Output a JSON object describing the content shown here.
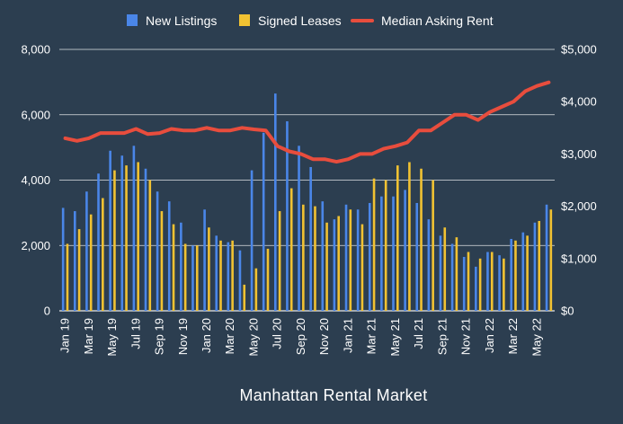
{
  "chart_data": {
    "type": "bar",
    "title": "Manhattan Rental Market",
    "background_color": "#2c3e50",
    "grid": true,
    "legend_position": "top",
    "y_left": {
      "ylim": [
        0,
        8000
      ],
      "ticks": [
        0,
        2000,
        4000,
        6000,
        8000
      ],
      "tick_labels": [
        "0",
        "2,000",
        "4,000",
        "6,000",
        "8,000"
      ]
    },
    "y_right": {
      "ylim": [
        0,
        5000
      ],
      "ticks": [
        0,
        1000,
        2000,
        3000,
        4000,
        5000
      ],
      "tick_labels": [
        "$0",
        "$1,000",
        "$2,000",
        "$3,000",
        "$4,000",
        "$5,000"
      ]
    },
    "x_tick_labels": [
      "Jan 19",
      "Mar 19",
      "May 19",
      "Jul 19",
      "Sep 19",
      "Nov 19",
      "Jan 20",
      "Mar 20",
      "May 20",
      "Jul 20",
      "Sep 20",
      "Nov 20",
      "Jan 21",
      "Mar 21",
      "May 21",
      "Jul 21",
      "Sep 21",
      "Nov 21",
      "Jan 22",
      "Mar 22",
      "May 22"
    ],
    "categories": [
      "Jan 19",
      "Feb 19",
      "Mar 19",
      "Apr 19",
      "May 19",
      "Jun 19",
      "Jul 19",
      "Aug 19",
      "Sep 19",
      "Oct 19",
      "Nov 19",
      "Dec 19",
      "Jan 20",
      "Feb 20",
      "Mar 20",
      "Apr 20",
      "May 20",
      "Jun 20",
      "Jul 20",
      "Aug 20",
      "Sep 20",
      "Oct 20",
      "Nov 20",
      "Dec 20",
      "Jan 21",
      "Feb 21",
      "Mar 21",
      "Apr 21",
      "May 21",
      "Jun 21",
      "Jul 21",
      "Aug 21",
      "Sep 21",
      "Oct 21",
      "Nov 21",
      "Dec 21",
      "Jan 22",
      "Feb 22",
      "Mar 22",
      "Apr 22",
      "May 22",
      "Jun 22"
    ],
    "series": [
      {
        "name": "New Listings",
        "type": "bar",
        "axis": "left",
        "color": "#4a86e8",
        "values": [
          3150,
          3050,
          3650,
          4200,
          4900,
          4750,
          5050,
          4350,
          3650,
          3350,
          2700,
          2000,
          3100,
          2300,
          2100,
          1850,
          4300,
          5450,
          6650,
          5800,
          5050,
          4400,
          3350,
          2800,
          3250,
          3100,
          3300,
          3500,
          3500,
          3700,
          3300,
          2800,
          2300,
          2050,
          1650,
          1350,
          1800,
          1700,
          2200,
          2400,
          2700,
          3250
        ]
      },
      {
        "name": "Signed Leases",
        "type": "bar",
        "axis": "left",
        "color": "#f1c232",
        "values": [
          2050,
          2500,
          2950,
          3450,
          4300,
          4450,
          4550,
          4000,
          3050,
          2650,
          2050,
          2000,
          2550,
          2150,
          2150,
          800,
          1300,
          1900,
          3050,
          3750,
          3250,
          3200,
          2700,
          2900,
          3100,
          2650,
          4050,
          4000,
          4450,
          4550,
          4350,
          4000,
          2550,
          2250,
          1800,
          1600,
          1800,
          1600,
          2150,
          2300,
          2750,
          3100
        ]
      },
      {
        "name": "Median Asking Rent",
        "type": "line",
        "axis": "right",
        "color": "#e84d3d",
        "values": [
          3300,
          3250,
          3300,
          3400,
          3400,
          3400,
          3480,
          3380,
          3400,
          3480,
          3450,
          3450,
          3500,
          3450,
          3450,
          3500,
          3470,
          3450,
          3150,
          3050,
          3000,
          2900,
          2900,
          2850,
          2900,
          3000,
          3000,
          3100,
          3150,
          3220,
          3450,
          3450,
          3600,
          3750,
          3750,
          3650,
          3800,
          3900,
          4000,
          4200,
          4300,
          4370
        ]
      }
    ]
  }
}
